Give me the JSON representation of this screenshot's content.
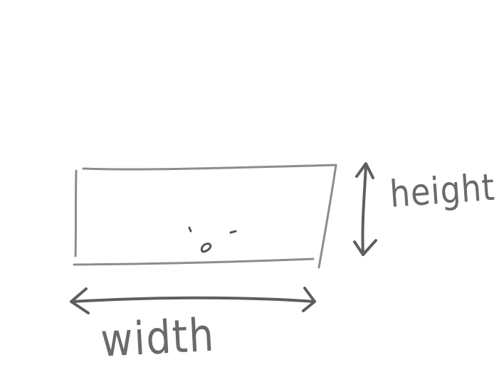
{
  "labels": {
    "height": "height",
    "width": "width"
  },
  "colors": {
    "background": "#ffffff",
    "rectangle_stroke": "#8c8c8c",
    "arrow_stroke": "#5e5e5e",
    "text": "#6a6a6a"
  },
  "icons": {
    "face": "doodle-face-icon",
    "height_arrow": "double-arrow-vertical-icon",
    "width_arrow": "double-arrow-horizontal-icon"
  }
}
